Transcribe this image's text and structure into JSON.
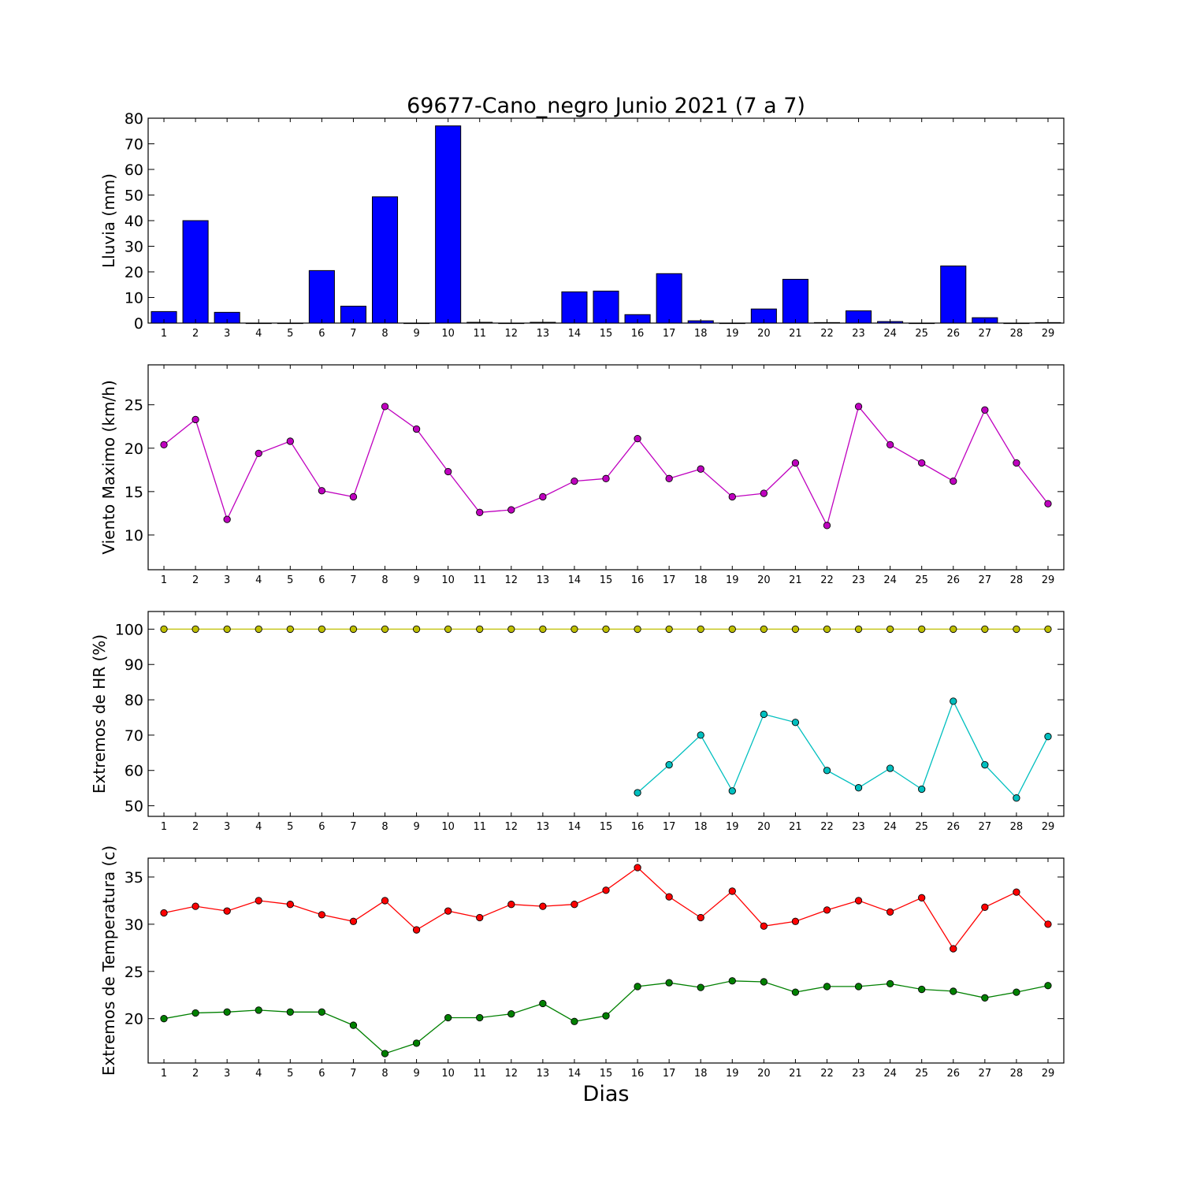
{
  "title": "69677-Cano_negro Junio 2021  (7 a 7)",
  "xlabel": "Dias",
  "colors": {
    "rain": "#0000ff",
    "wind": "#bf00bf",
    "hr_max": "#bfbf00",
    "hr_min": "#00bfbf",
    "temp_max": "#ff0000",
    "temp_min": "#008000"
  },
  "chart_data": [
    {
      "type": "bar",
      "ylabel": "Lluvia (mm)",
      "ylim": [
        0,
        80
      ],
      "yticks": [
        0,
        10,
        20,
        30,
        40,
        50,
        60,
        70,
        80
      ],
      "categories": [
        "1",
        "2",
        "3",
        "4",
        "5",
        "6",
        "7",
        "8",
        "9",
        "10",
        "11",
        "12",
        "13",
        "14",
        "15",
        "16",
        "17",
        "18",
        "19",
        "20",
        "21",
        "22",
        "23",
        "24",
        "25",
        "26",
        "27",
        "28",
        "29"
      ],
      "values": [
        4.5,
        40,
        4.2,
        0,
        0,
        20.5,
        6.6,
        49.3,
        0,
        77,
        0.3,
        0,
        0.3,
        12.2,
        12.5,
        3.3,
        19.3,
        0.9,
        0,
        5.5,
        17.1,
        0.2,
        4.8,
        0.6,
        0,
        22.3,
        2.1,
        0,
        0.2
      ],
      "grid": false
    },
    {
      "type": "line",
      "ylabel": "Viento Maximo (km/h)",
      "ylim": [
        6,
        29.6
      ],
      "yticks": [
        10,
        15,
        20,
        25
      ],
      "categories": [
        "1",
        "2",
        "3",
        "4",
        "5",
        "6",
        "7",
        "8",
        "9",
        "10",
        "11",
        "12",
        "13",
        "14",
        "15",
        "16",
        "17",
        "18",
        "19",
        "20",
        "21",
        "22",
        "23",
        "24",
        "25",
        "26",
        "27",
        "28",
        "29"
      ],
      "series": [
        {
          "values": [
            20.4,
            23.3,
            11.8,
            19.4,
            20.8,
            15.1,
            14.4,
            24.8,
            22.2,
            17.3,
            12.6,
            12.9,
            14.4,
            16.2,
            16.5,
            21.1,
            16.5,
            17.6,
            14.4,
            14.8,
            18.3,
            11.1,
            24.8,
            20.4,
            18.3,
            16.2,
            24.4,
            18.3,
            13.6
          ]
        }
      ],
      "grid": false
    },
    {
      "type": "line",
      "ylabel": "Extremos de HR (%)",
      "ylim": [
        47,
        105
      ],
      "yticks": [
        50,
        60,
        70,
        80,
        90,
        100
      ],
      "categories": [
        "1",
        "2",
        "3",
        "4",
        "5",
        "6",
        "7",
        "8",
        "9",
        "10",
        "11",
        "12",
        "13",
        "14",
        "15",
        "16",
        "17",
        "18",
        "19",
        "20",
        "21",
        "22",
        "23",
        "24",
        "25",
        "26",
        "27",
        "28",
        "29"
      ],
      "series": [
        {
          "values": [
            100,
            100,
            100,
            100,
            100,
            100,
            100,
            100,
            100,
            100,
            100,
            100,
            100,
            100,
            100,
            100,
            100,
            100,
            100,
            100,
            100,
            100,
            100,
            100,
            100,
            100,
            100,
            100,
            100
          ]
        },
        {
          "values": [
            null,
            null,
            null,
            null,
            null,
            null,
            null,
            null,
            null,
            null,
            null,
            null,
            null,
            null,
            null,
            53.7,
            61.6,
            70,
            54.2,
            75.9,
            73.6,
            60,
            55.1,
            60.6,
            54.7,
            79.6,
            61.6,
            52.2,
            69.6
          ]
        }
      ],
      "grid": false
    },
    {
      "type": "line",
      "ylabel": "Extremos de Temperatura (c)",
      "ylim": [
        15.3,
        37
      ],
      "yticks": [
        20,
        25,
        30,
        35
      ],
      "categories": [
        "1",
        "2",
        "3",
        "4",
        "5",
        "6",
        "7",
        "8",
        "9",
        "10",
        "11",
        "12",
        "13",
        "14",
        "15",
        "16",
        "17",
        "18",
        "19",
        "20",
        "21",
        "22",
        "23",
        "24",
        "25",
        "26",
        "27",
        "28",
        "29"
      ],
      "series": [
        {
          "values": [
            31.2,
            31.9,
            31.4,
            32.5,
            32.1,
            31.0,
            30.3,
            32.5,
            29.4,
            31.4,
            30.7,
            32.1,
            31.9,
            32.1,
            33.6,
            36.0,
            32.9,
            30.7,
            33.5,
            29.8,
            30.3,
            31.5,
            32.5,
            31.3,
            32.8,
            27.4,
            31.8,
            33.4,
            30.0
          ]
        },
        {
          "values": [
            20.0,
            20.6,
            20.7,
            20.9,
            20.7,
            20.7,
            19.3,
            16.3,
            17.4,
            20.1,
            20.1,
            20.5,
            21.6,
            19.7,
            20.3,
            23.4,
            23.8,
            23.3,
            24.0,
            23.9,
            22.8,
            23.4,
            23.4,
            23.7,
            23.1,
            22.9,
            22.2,
            22.8,
            23.5
          ]
        }
      ],
      "grid": false
    }
  ]
}
